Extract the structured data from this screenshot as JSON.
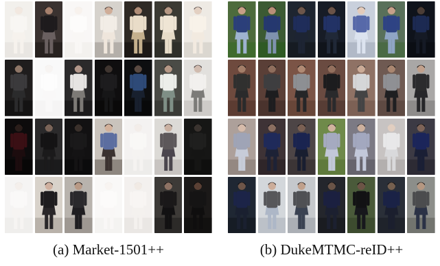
{
  "figure": {
    "panels": [
      {
        "caption": "(a) Market-1501++",
        "rows": [
          [
            {
              "bg": "#e7e3dd",
              "ground": "#d7d2cb",
              "top": "#f3efe9",
              "bottom": "#efe8df",
              "skin": "#e8d6c7",
              "hair": "#d8cfc7",
              "fade": 0.45
            },
            {
              "bg": "#3a3230",
              "ground": "#282220",
              "top": "#1e1b1d",
              "bottom": "#6a6060",
              "skin": "#a6806d",
              "hair": "#171214",
              "fade": 0
            },
            {
              "bg": "#f1eeea",
              "ground": "#e4dfda",
              "top": "#fbf8f6",
              "bottom": "#f2ede8",
              "skin": "#efe3d8",
              "hair": "#e5ded8",
              "fade": 0.55
            },
            {
              "bg": "#d6d2cc",
              "ground": "#b4afa9",
              "top": "#f2ede6",
              "bottom": "#efe6dc",
              "skin": "#cfad98",
              "hair": "#3d3433",
              "fade": 0
            },
            {
              "bg": "#2f2a25",
              "ground": "#1d1916",
              "top": "#e9dcc8",
              "bottom": "#c5b08d",
              "skin": "#b08d77",
              "hair": "#16110f",
              "fade": 0
            },
            {
              "bg": "#3b3a33",
              "ground": "#2f2f29",
              "top": "#efe5d4",
              "bottom": "#e7dcc8",
              "skin": "#b69884",
              "hair": "#181515",
              "fade": 0
            },
            {
              "bg": "#ece7e0",
              "ground": "#d5d0c8",
              "top": "#f7f0e6",
              "bottom": "#f0e7db",
              "skin": "#dfc8b8",
              "hair": "#302726",
              "fade": 0.15
            }
          ],
          [
            {
              "bg": "#1f1d1d",
              "ground": "#141313",
              "top": "#3b3a3c",
              "bottom": "#2b2b2c",
              "skin": "#8e7667",
              "hair": "#141414",
              "fade": 0
            },
            {
              "bg": "#f0efef",
              "ground": "#e6e4e4",
              "top": "#fafafa",
              "bottom": "#efeeed",
              "skin": "#ece4de",
              "hair": "#e1dcd8",
              "fade": 0.6
            },
            {
              "bg": "#2b2a2b",
              "ground": "#1c1b1c",
              "top": "#e6e4e2",
              "bottom": "#7d7a76",
              "skin": "#b2978a",
              "hair": "#1b1a1a",
              "fade": 0
            },
            {
              "bg": "#0f0e0f",
              "ground": "#0a0909",
              "top": "#1d1c1e",
              "bottom": "#161617",
              "skin": "#3f3530",
              "hair": "#0a0a0a",
              "fade": 0
            },
            {
              "bg": "#0d0e10",
              "ground": "#08090a",
              "top": "#2e4a78",
              "bottom": "#18202e",
              "skin": "#5a4a42",
              "hair": "#09090a",
              "fade": 0
            },
            {
              "bg": "#4a4b46",
              "ground": "#3a3b37",
              "top": "#eceeea",
              "bottom": "#7f8f86",
              "skin": "#b59886",
              "hair": "#1d1b1a",
              "fade": 0
            },
            {
              "bg": "#dfddda",
              "ground": "#c9c6c2",
              "top": "#f1efec",
              "bottom": "#6e6c69",
              "skin": "#cbb4a6",
              "hair": "#2d2828",
              "fade": 0.1
            }
          ],
          [
            {
              "bg": "#0d0b0c",
              "ground": "#080707",
              "top": "#3a0f14",
              "bottom": "#1c0c0e",
              "skin": "#2a1d1a",
              "hair": "#070606",
              "fade": 0
            },
            {
              "bg": "#2b2a2b",
              "ground": "#1b1b1c",
              "top": "#141314",
              "bottom": "#1b1a1b",
              "skin": "#7a6458",
              "hair": "#0d0c0c",
              "fade": 0
            },
            {
              "bg": "#121112",
              "ground": "#0b0b0c",
              "top": "#1a191a",
              "bottom": "#141314",
              "skin": "#3a302b",
              "hair": "#0a0909",
              "fade": 0
            },
            {
              "bg": "#c9c3bc",
              "ground": "#8e8780",
              "top": "#5c6ea0",
              "bottom": "#3b3230",
              "skin": "#d2b09a",
              "hair": "#2a2322",
              "fade": 0
            },
            {
              "bg": "#e6e3e0",
              "ground": "#d8d4d0",
              "top": "#f2efec",
              "bottom": "#e9e5e1",
              "skin": "#e4d8cf",
              "hair": "#d9d3ce",
              "fade": 0.55
            },
            {
              "bg": "#d9d6d2",
              "ground": "#c2beba",
              "top": "#4b4648",
              "bottom": "#37323a",
              "skin": "#c5a998",
              "hair": "#201c1c",
              "fade": 0.1
            },
            {
              "bg": "#161615",
              "ground": "#0f0f0e",
              "top": "#1f1f1e",
              "bottom": "#151514",
              "skin": "#3a332f",
              "hair": "#0c0c0c",
              "fade": 0
            }
          ],
          [
            {
              "bg": "#e9e7e5",
              "ground": "#dcd9d6",
              "top": "#f4f2f0",
              "bottom": "#ebe7e3",
              "skin": "#e7dbd2",
              "hair": "#d6d0cb",
              "fade": 0.55
            },
            {
              "bg": "#d8d2ca",
              "ground": "#b9b2aa",
              "top": "#1e1c1e",
              "bottom": "#2a2729",
              "skin": "#cfb09f",
              "hair": "#161313",
              "fade": 0
            },
            {
              "bg": "#b8b3ad",
              "ground": "#9e9892",
              "top": "#2a292c",
              "bottom": "#1f1e21",
              "skin": "#b89985",
              "hair": "#181616",
              "fade": 0
            },
            {
              "bg": "#f1eeeb",
              "ground": "#e4e0dc",
              "top": "#f8f6f3",
              "bottom": "#f0ece8",
              "skin": "#ede3db",
              "hair": "#e0dad5",
              "fade": 0.6
            },
            {
              "bg": "#e6e1dc",
              "ground": "#d4cec8",
              "top": "#f0ebe6",
              "bottom": "#e9e3dd",
              "skin": "#e2d4c9",
              "hair": "#d3cbc4",
              "fade": 0.5
            },
            {
              "bg": "#3d3a37",
              "ground": "#2c2a28",
              "top": "#1a1819",
              "bottom": "#121112",
              "skin": "#8e7264",
              "hair": "#0f0d0d",
              "fade": 0
            },
            {
              "bg": "#1b1918",
              "ground": "#121110",
              "top": "#151414",
              "bottom": "#0f0e0e",
              "skin": "#5a4034",
              "hair": "#0b0a0a",
              "fade": 0
            }
          ]
        ]
      },
      {
        "caption": "(b) DukeMTMC-reID++",
        "rows": [
          [
            {
              "bg": "#4d6b3c",
              "ground": "#3f6a2e",
              "top": "#2b3f7a",
              "bottom": "#9eb3cf",
              "skin": "#c89f87",
              "hair": "#1a1a1c",
              "fade": 0
            },
            {
              "bg": "#3c5a33",
              "ground": "#2f5a24",
              "top": "#25386f",
              "bottom": "#7f92ae",
              "skin": "#b98f78",
              "hair": "#18181a",
              "fade": 0
            },
            {
              "bg": "#1e2530",
              "ground": "#161b22",
              "top": "#1f2d5a",
              "bottom": "#1d2433",
              "skin": "#6d564b",
              "hair": "#0f0f12",
              "fade": 0
            },
            {
              "bg": "#171c26",
              "ground": "#10141b",
              "top": "#223265",
              "bottom": "#202837",
              "skin": "#6a5348",
              "hair": "#0d0d10",
              "fade": 0
            },
            {
              "bg": "#c3cbd8",
              "ground": "#a9b2c1",
              "top": "#4459a0",
              "bottom": "#d8e0ee",
              "skin": "#e0c6b4",
              "hair": "#3a3a40",
              "fade": 0.1
            },
            {
              "bg": "#59705a",
              "ground": "#4a6a45",
              "top": "#2e4384",
              "bottom": "#8fa5c4",
              "skin": "#c6a08a",
              "hair": "#1b1b1e",
              "fade": 0
            },
            {
              "bg": "#0f131b",
              "ground": "#0b0e14",
              "top": "#1c2a52",
              "bottom": "#151a25",
              "skin": "#4b3d36",
              "hair": "#0a0a0c",
              "fade": 0
            }
          ],
          [
            {
              "bg": "#6e4a3e",
              "ground": "#5c3c32",
              "top": "#30302f",
              "bottom": "#2a2a2b",
              "skin": "#a37e69",
              "hair": "#181616",
              "fade": 0
            },
            {
              "bg": "#5a3f37",
              "ground": "#4a332d",
              "top": "#3e3e40",
              "bottom": "#1d1d1f",
              "skin": "#8f6e5d",
              "hair": "#131212",
              "fade": 0
            },
            {
              "bg": "#7b5446",
              "ground": "#684639",
              "top": "#8d8f93",
              "bottom": "#262628",
              "skin": "#b08a74",
              "hair": "#1a1818",
              "fade": 0
            },
            {
              "bg": "#6a4b41",
              "ground": "#573d35",
              "top": "#1c1c1e",
              "bottom": "#2a2a2c",
              "skin": "#93705e",
              "hair": "#121111",
              "fade": 0
            },
            {
              "bg": "#8a6b5d",
              "ground": "#76594c",
              "top": "#d3d4d6",
              "bottom": "#3a3a3c",
              "skin": "#c9a792",
              "hair": "#2a2727",
              "fade": 0.05
            },
            {
              "bg": "#6f5a52",
              "ground": "#5e4a43",
              "top": "#8f9094",
              "bottom": "#1f1f21",
              "skin": "#a98670",
              "hair": "#171515",
              "fade": 0
            },
            {
              "bg": "#a9a7a6",
              "ground": "#8e8c8b",
              "top": "#2b2b2d",
              "bottom": "#27272a",
              "skin": "#c0a08c",
              "hair": "#1a1919",
              "fade": 0
            }
          ],
          [
            {
              "bg": "#a99b95",
              "ground": "#8f827c",
              "top": "#9aa0b3",
              "bottom": "#c5cad6",
              "skin": "#d4b8a6",
              "hair": "#3a3434",
              "fade": 0.05
            },
            {
              "bg": "#3e3336",
              "ground": "#2f2629",
              "top": "#1f2a5a",
              "bottom": "#1d2236",
              "skin": "#8b6e60",
              "hair": "#121114",
              "fade": 0
            },
            {
              "bg": "#4d4546",
              "ground": "#3c3536",
              "top": "#1a2450",
              "bottom": "#191e30",
              "skin": "#7a6053",
              "hair": "#0f0e11",
              "fade": 0
            },
            {
              "bg": "#6f8a4a",
              "ground": "#5f7a3c",
              "top": "#a5aac0",
              "bottom": "#c2c8d8",
              "skin": "#d0b29e",
              "hair": "#2f2c2d",
              "fade": 0
            },
            {
              "bg": "#7c7a84",
              "ground": "#66646d",
              "top": "#a3a8bf",
              "bottom": "#c3c9da",
              "skin": "#cdb09d",
              "hair": "#2d2a2c",
              "fade": 0
            },
            {
              "bg": "#b9b5b3",
              "ground": "#a09c9a",
              "top": "#e3e3e4",
              "bottom": "#d0d0d2",
              "skin": "#dac2b1",
              "hair": "#bdb6b0",
              "fade": 0.2
            },
            {
              "bg": "#3c3a44",
              "ground": "#2d2b34",
              "top": "#1b255a",
              "bottom": "#1a1f35",
              "skin": "#7d6357",
              "hair": "#0e0d10",
              "fade": 0
            }
          ],
          [
            {
              "bg": "#1f2733",
              "ground": "#161c25",
              "top": "#1c2448",
              "bottom": "#1a2030",
              "skin": "#6e5649",
              "hair": "#0d0d10",
              "fade": 0
            },
            {
              "bg": "#d1d5da",
              "ground": "#b9bec6",
              "top": "#4e4f52",
              "bottom": "#a9b4c4",
              "skin": "#caa995",
              "hair": "#2a2626",
              "fade": 0.05
            },
            {
              "bg": "#c5c8cc",
              "ground": "#abafb5",
              "top": "#4f5054",
              "bottom": "#3a4252",
              "skin": "#c0a08b",
              "hair": "#222021",
              "fade": 0
            },
            {
              "bg": "#24262c",
              "ground": "#1a1c21",
              "top": "#1b2040",
              "bottom": "#1c2030",
              "skin": "#6a5447",
              "hair": "#0e0e10",
              "fade": 0
            },
            {
              "bg": "#4a5a3a",
              "ground": "#3d4c2f",
              "top": "#121214",
              "bottom": "#17181c",
              "skin": "#6c5446",
              "hair": "#0c0c0d",
              "fade": 0
            },
            {
              "bg": "#2a2f38",
              "ground": "#1f232b",
              "top": "#1a2246",
              "bottom": "#1b1f2e",
              "skin": "#75604f",
              "hair": "#0f0f12",
              "fade": 0
            },
            {
              "bg": "#8c8e8a",
              "ground": "#72746f",
              "top": "#4b4c4e",
              "bottom": "#2b3246",
              "skin": "#b59781",
              "hair": "#1c1a1a",
              "fade": 0
            }
          ]
        ]
      }
    ]
  }
}
